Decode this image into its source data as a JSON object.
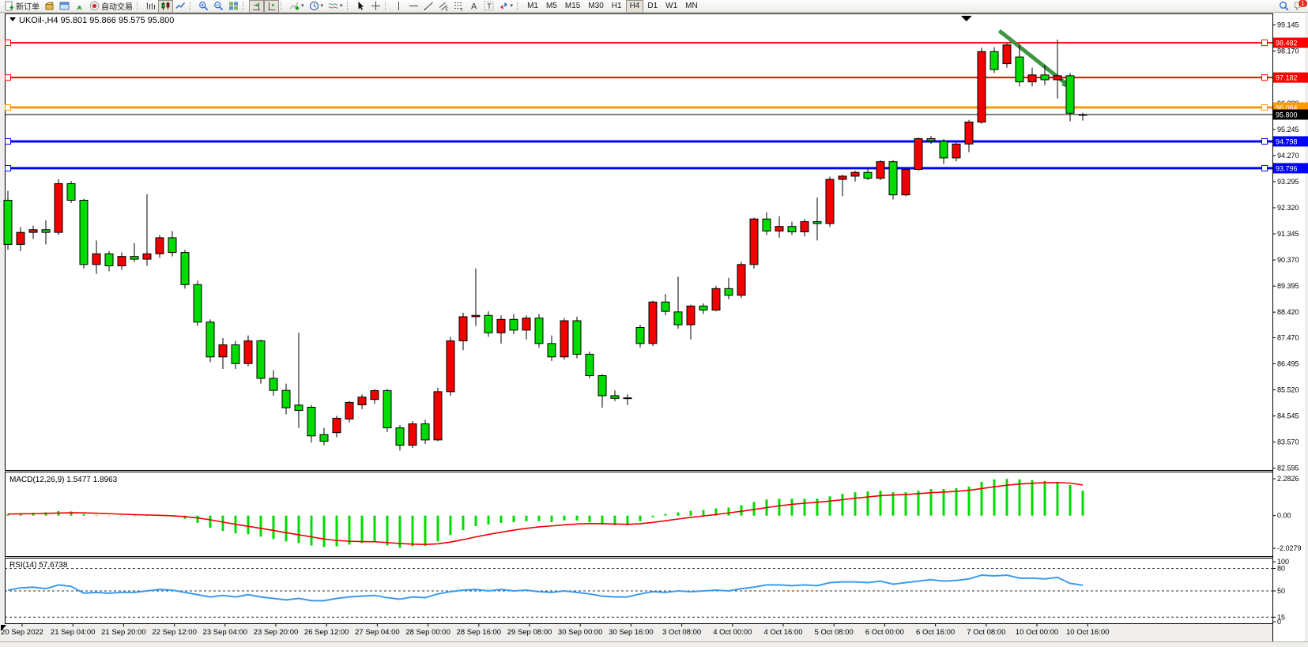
{
  "toolbar": {
    "notification_count": "1",
    "active_timeframe": "H4",
    "timeframes": [
      "M1",
      "M5",
      "M15",
      "M30",
      "H1",
      "H4",
      "D1",
      "W1",
      "MN"
    ],
    "items": [
      {
        "name": "new-order-button",
        "icon": "doc-plus",
        "label": "新订单"
      },
      {
        "name": "market-watch-button",
        "icon": "gold-box"
      },
      {
        "name": "data-window-button",
        "icon": "blue-window"
      },
      {
        "name": "navigator-button",
        "icon": "green-signal"
      },
      {
        "name": "auto-trading-button",
        "icon": "play-red",
        "label": "自动交易"
      },
      {
        "sep": true
      },
      {
        "name": "bar-chart-button",
        "icon": "bars"
      },
      {
        "name": "candle-chart-button",
        "icon": "candles",
        "active": true
      },
      {
        "name": "line-chart-button",
        "icon": "line"
      },
      {
        "sep": true
      },
      {
        "name": "zoom-in-button",
        "icon": "zoom-in"
      },
      {
        "name": "zoom-out-button",
        "icon": "zoom-out"
      },
      {
        "name": "tile-windows-button",
        "icon": "tiles"
      },
      {
        "sep": true
      },
      {
        "name": "chart-shift-button",
        "icon": "shift",
        "active": true
      },
      {
        "name": "auto-scroll-button",
        "icon": "autoscroll",
        "active": true
      },
      {
        "sep": true
      },
      {
        "name": "indicators-button",
        "icon": "indicator-plus",
        "caret": true
      },
      {
        "name": "periods-button",
        "icon": "clock",
        "caret": true
      },
      {
        "name": "templates-button",
        "icon": "template",
        "caret": true
      },
      {
        "sep": true
      },
      {
        "name": "cursor-button",
        "icon": "cursor"
      },
      {
        "name": "crosshair-button",
        "icon": "crosshair"
      },
      {
        "sep": true
      },
      {
        "name": "vertical-line-button",
        "icon": "vline"
      },
      {
        "name": "horizontal-line-button",
        "icon": "hline"
      },
      {
        "name": "trendline-button",
        "icon": "tline"
      },
      {
        "name": "channel-button",
        "icon": "channel"
      },
      {
        "name": "fibonacci-button",
        "icon": "fibo"
      },
      {
        "name": "text-button",
        "icon": "textA"
      },
      {
        "name": "text-label-button",
        "icon": "textT"
      },
      {
        "name": "arrows-button",
        "icon": "arrows",
        "caret": true
      },
      {
        "sep": true
      }
    ]
  },
  "chart_data": {
    "type": "candlestick",
    "symbol": "UKOil-",
    "timeframe": "H4",
    "color_convention": "red=up, green=down",
    "ohlc": {
      "open": "95.801",
      "high": "95.866",
      "low": "95.575",
      "close": "95.800"
    },
    "price_axis_ticks": [
      "99.145",
      "98.170",
      "97.195",
      "96.220",
      "95.245",
      "94.270",
      "93.295",
      "92.320",
      "91.345",
      "90.370",
      "89.395",
      "88.420",
      "87.470",
      "86.495",
      "85.520",
      "84.545",
      "83.570",
      "82.595"
    ],
    "levels": [
      {
        "price": 98.482,
        "label": "98.482",
        "color": "#ff0000",
        "width": 2,
        "name": "resistance-line-98482"
      },
      {
        "price": 97.182,
        "label": "97.182",
        "color": "#ff0000",
        "width": 2,
        "name": "resistance-line-97182"
      },
      {
        "price": 96.064,
        "label": "96.064",
        "color": "#ff9900",
        "width": 3,
        "name": "pivot-line-96064"
      },
      {
        "price": 94.798,
        "label": "94.798",
        "color": "#0000ff",
        "width": 3,
        "name": "support-line-94798"
      },
      {
        "price": 93.796,
        "label": "93.796",
        "color": "#0000ff",
        "width": 3,
        "name": "support-line-93796"
      }
    ],
    "current_price": {
      "value": 95.8,
      "label": "95.800"
    },
    "candles": [
      [
        92.6,
        92.95,
        90.75,
        90.95
      ],
      [
        90.95,
        91.6,
        90.7,
        91.4
      ],
      [
        91.4,
        91.65,
        91.15,
        91.5
      ],
      [
        91.5,
        91.85,
        90.95,
        91.4
      ],
      [
        91.4,
        93.38,
        91.3,
        93.22
      ],
      [
        93.22,
        93.32,
        92.5,
        92.6
      ],
      [
        92.6,
        92.66,
        90.05,
        90.2
      ],
      [
        90.2,
        91.1,
        89.85,
        90.6
      ],
      [
        90.6,
        90.7,
        89.95,
        90.15
      ],
      [
        90.15,
        90.65,
        90.0,
        90.5
      ],
      [
        90.5,
        91.0,
        90.3,
        90.4
      ],
      [
        90.4,
        92.82,
        90.15,
        90.6
      ],
      [
        90.6,
        91.3,
        90.45,
        91.2
      ],
      [
        91.2,
        91.45,
        90.5,
        90.65
      ],
      [
        90.65,
        90.75,
        89.3,
        89.45
      ],
      [
        89.45,
        89.6,
        87.9,
        88.05
      ],
      [
        88.05,
        88.15,
        86.55,
        86.75
      ],
      [
        86.75,
        87.45,
        86.3,
        87.2
      ],
      [
        87.2,
        87.35,
        86.3,
        86.5
      ],
      [
        86.5,
        87.55,
        86.4,
        87.35
      ],
      [
        87.35,
        87.4,
        85.75,
        85.95
      ],
      [
        85.95,
        86.25,
        85.3,
        85.5
      ],
      [
        85.5,
        85.75,
        84.6,
        84.85
      ],
      [
        84.95,
        87.65,
        84.1,
        84.75
      ],
      [
        84.87,
        84.95,
        83.55,
        83.8
      ],
      [
        83.85,
        84.1,
        83.45,
        83.6
      ],
      [
        83.92,
        84.55,
        83.75,
        84.46
      ],
      [
        84.43,
        85.1,
        84.3,
        85.05
      ],
      [
        84.96,
        85.35,
        84.8,
        85.25
      ],
      [
        85.16,
        85.55,
        85.0,
        85.49
      ],
      [
        85.49,
        85.55,
        83.95,
        84.1
      ],
      [
        84.1,
        84.2,
        83.25,
        83.45
      ],
      [
        83.45,
        84.35,
        83.35,
        84.25
      ],
      [
        84.25,
        84.4,
        83.5,
        83.65
      ],
      [
        83.65,
        85.6,
        83.6,
        85.45
      ],
      [
        85.45,
        87.5,
        85.3,
        87.35
      ],
      [
        87.35,
        88.4,
        87.0,
        88.25
      ],
      [
        88.25,
        90.05,
        87.9,
        88.3
      ],
      [
        88.3,
        88.45,
        87.5,
        87.65
      ],
      [
        87.65,
        88.3,
        87.25,
        88.15
      ],
      [
        88.15,
        88.35,
        87.6,
        87.75
      ],
      [
        87.75,
        88.3,
        87.4,
        88.2
      ],
      [
        88.2,
        88.35,
        87.1,
        87.25
      ],
      [
        87.25,
        87.55,
        86.6,
        86.75
      ],
      [
        86.75,
        88.2,
        86.65,
        88.1
      ],
      [
        88.1,
        88.25,
        86.7,
        86.85
      ],
      [
        86.85,
        86.95,
        85.95,
        86.05
      ],
      [
        86.05,
        86.1,
        84.85,
        85.3
      ],
      [
        85.3,
        85.5,
        85.1,
        85.2
      ],
      [
        85.2,
        85.35,
        84.95,
        85.22
      ],
      [
        87.85,
        87.95,
        87.1,
        87.25
      ],
      [
        87.25,
        88.85,
        87.15,
        88.8
      ],
      [
        88.8,
        89.1,
        88.3,
        88.45
      ],
      [
        88.43,
        89.75,
        87.8,
        87.95
      ],
      [
        87.95,
        88.7,
        87.4,
        88.65
      ],
      [
        88.65,
        88.75,
        88.35,
        88.5
      ],
      [
        88.5,
        89.4,
        88.45,
        89.3
      ],
      [
        89.3,
        89.7,
        88.9,
        89.05
      ],
      [
        89.05,
        90.3,
        88.95,
        90.2
      ],
      [
        90.2,
        91.95,
        90.05,
        91.9
      ],
      [
        91.9,
        92.15,
        91.3,
        91.45
      ],
      [
        91.45,
        92.0,
        91.2,
        91.62
      ],
      [
        91.62,
        91.8,
        91.3,
        91.42
      ],
      [
        91.42,
        91.9,
        91.25,
        91.8
      ],
      [
        91.8,
        92.7,
        91.1,
        91.73
      ],
      [
        91.73,
        93.48,
        91.6,
        93.38
      ],
      [
        93.38,
        93.55,
        92.75,
        93.5
      ],
      [
        93.5,
        93.7,
        93.3,
        93.64
      ],
      [
        93.64,
        93.8,
        93.35,
        93.42
      ],
      [
        93.42,
        94.1,
        93.35,
        94.04
      ],
      [
        94.04,
        94.1,
        92.63,
        92.8
      ],
      [
        92.8,
        93.8,
        92.75,
        93.75
      ],
      [
        93.75,
        94.95,
        93.7,
        94.9
      ],
      [
        94.9,
        95.0,
        94.7,
        94.82
      ],
      [
        94.8,
        94.88,
        93.95,
        94.18
      ],
      [
        94.18,
        94.75,
        94.05,
        94.7
      ],
      [
        94.7,
        95.6,
        94.4,
        95.52
      ],
      [
        95.52,
        98.3,
        95.45,
        98.15
      ],
      [
        98.15,
        98.32,
        97.35,
        97.48
      ],
      [
        97.7,
        98.45,
        97.55,
        98.4
      ],
      [
        97.95,
        98.42,
        96.85,
        97.02
      ],
      [
        97.02,
        97.55,
        96.85,
        97.28
      ],
      [
        97.28,
        97.65,
        96.9,
        97.1
      ],
      [
        97.1,
        98.6,
        96.4,
        97.25
      ],
      [
        97.25,
        97.35,
        95.55,
        95.85
      ],
      [
        95.801,
        95.866,
        95.575,
        95.8
      ]
    ],
    "time_labels": [
      "20 Sep 2022",
      "21 Sep 04:00",
      "21 Sep 20:00",
      "22 Sep 12:00",
      "23 Sep 04:00",
      "23 Sep 20:00",
      "26 Sep 12:00",
      "27 Sep 04:00",
      "28 Sep 00:00",
      "28 Sep 16:00",
      "29 Sep 08:00",
      "30 Sep 00:00",
      "30 Sep 16:00",
      "3 Oct 08:00",
      "4 Oct 00:00",
      "4 Oct 16:00",
      "5 Oct 08:00",
      "6 Oct 00:00",
      "6 Oct 16:00",
      "7 Oct 08:00",
      "10 Oct 00:00",
      "10 Oct 16:00"
    ],
    "macd": {
      "label": "MACD(12,26,9)",
      "main_value": "1.5477",
      "signal_value": "1.8963",
      "axis": [
        "2.2826",
        "0.00",
        "-2.0279"
      ],
      "hist_color": "#00dc00",
      "signal_color": "#f20000",
      "hist": [
        0.1,
        0.14,
        0.18,
        0.2,
        0.28,
        0.26,
        0.1,
        0.02,
        -0.02,
        -0.03,
        -0.02,
        0.02,
        0.0,
        -0.05,
        -0.2,
        -0.45,
        -0.75,
        -0.95,
        -1.1,
        -1.15,
        -1.3,
        -1.45,
        -1.6,
        -1.7,
        -1.85,
        -1.95,
        -1.9,
        -1.8,
        -1.7,
        -1.65,
        -1.85,
        -2.0,
        -1.9,
        -1.88,
        -1.6,
        -1.2,
        -0.9,
        -0.65,
        -0.55,
        -0.45,
        -0.4,
        -0.35,
        -0.35,
        -0.4,
        -0.3,
        -0.3,
        -0.4,
        -0.55,
        -0.6,
        -0.6,
        -0.35,
        -0.1,
        0.1,
        0.2,
        0.3,
        0.35,
        0.45,
        0.5,
        0.65,
        0.85,
        1.0,
        1.05,
        1.05,
        1.05,
        1.05,
        1.2,
        1.35,
        1.45,
        1.5,
        1.55,
        1.45,
        1.45,
        1.55,
        1.65,
        1.65,
        1.7,
        1.8,
        2.1,
        2.25,
        2.28,
        2.25,
        2.2,
        2.15,
        2.1,
        1.9,
        1.55
      ],
      "signal": [
        0.1,
        0.11,
        0.12,
        0.14,
        0.16,
        0.18,
        0.17,
        0.15,
        0.12,
        0.09,
        0.06,
        0.04,
        0.02,
        -0.01,
        -0.06,
        -0.14,
        -0.26,
        -0.4,
        -0.54,
        -0.66,
        -0.79,
        -0.92,
        -1.06,
        -1.19,
        -1.32,
        -1.45,
        -1.54,
        -1.59,
        -1.61,
        -1.62,
        -1.67,
        -1.73,
        -1.77,
        -1.79,
        -1.75,
        -1.64,
        -1.49,
        -1.32,
        -1.17,
        -1.03,
        -0.9,
        -0.79,
        -0.7,
        -0.64,
        -0.57,
        -0.52,
        -0.49,
        -0.5,
        -0.52,
        -0.54,
        -0.5,
        -0.42,
        -0.32,
        -0.21,
        -0.11,
        -0.02,
        0.07,
        0.17,
        0.27,
        0.38,
        0.5,
        0.61,
        0.7,
        0.77,
        0.83,
        0.9,
        0.99,
        1.08,
        1.16,
        1.24,
        1.28,
        1.31,
        1.36,
        1.42,
        1.46,
        1.51,
        1.57,
        1.68,
        1.79,
        1.89,
        1.96,
        2.01,
        2.04,
        2.05,
        2.02,
        1.9
      ]
    },
    "rsi": {
      "label": "RSI(14)",
      "value": "57.6738",
      "line_color": "#3d9bee",
      "dashed_levels": [
        80,
        50,
        15
      ],
      "axis_labels": [
        "100",
        "80",
        "50",
        "15",
        "0"
      ],
      "values": [
        51,
        54,
        55,
        53,
        58,
        56,
        47,
        48,
        47,
        48,
        48,
        50,
        52,
        51,
        48,
        45,
        42,
        44,
        42,
        45,
        42,
        40,
        38,
        40,
        37,
        37,
        40,
        42,
        43,
        44,
        41,
        39,
        42,
        41,
        46,
        49,
        51,
        52,
        50,
        52,
        50,
        51,
        49,
        48,
        50,
        48,
        46,
        43,
        42,
        42,
        46,
        49,
        48,
        50,
        49,
        50,
        51,
        50,
        53,
        55,
        58,
        58,
        57,
        58,
        57,
        61,
        62,
        62,
        61,
        63,
        59,
        61,
        63,
        65,
        63,
        64,
        66,
        71,
        70,
        71,
        67,
        67,
        66,
        68,
        60,
        57.67
      ],
      "ylim": [
        0,
        100
      ]
    },
    "annotations": {
      "arrow": {
        "from_index": 78.4,
        "from_price": 98.93,
        "to_index": 84.3,
        "to_price": 96.72,
        "color": "#3f9642"
      },
      "shift_marker_index": 75.8
    },
    "colors": {
      "bull": "#f20000",
      "bear": "#00dc00",
      "outline": "#000000",
      "chart_bg": "#ffffff",
      "axis_text": "#000000"
    }
  }
}
